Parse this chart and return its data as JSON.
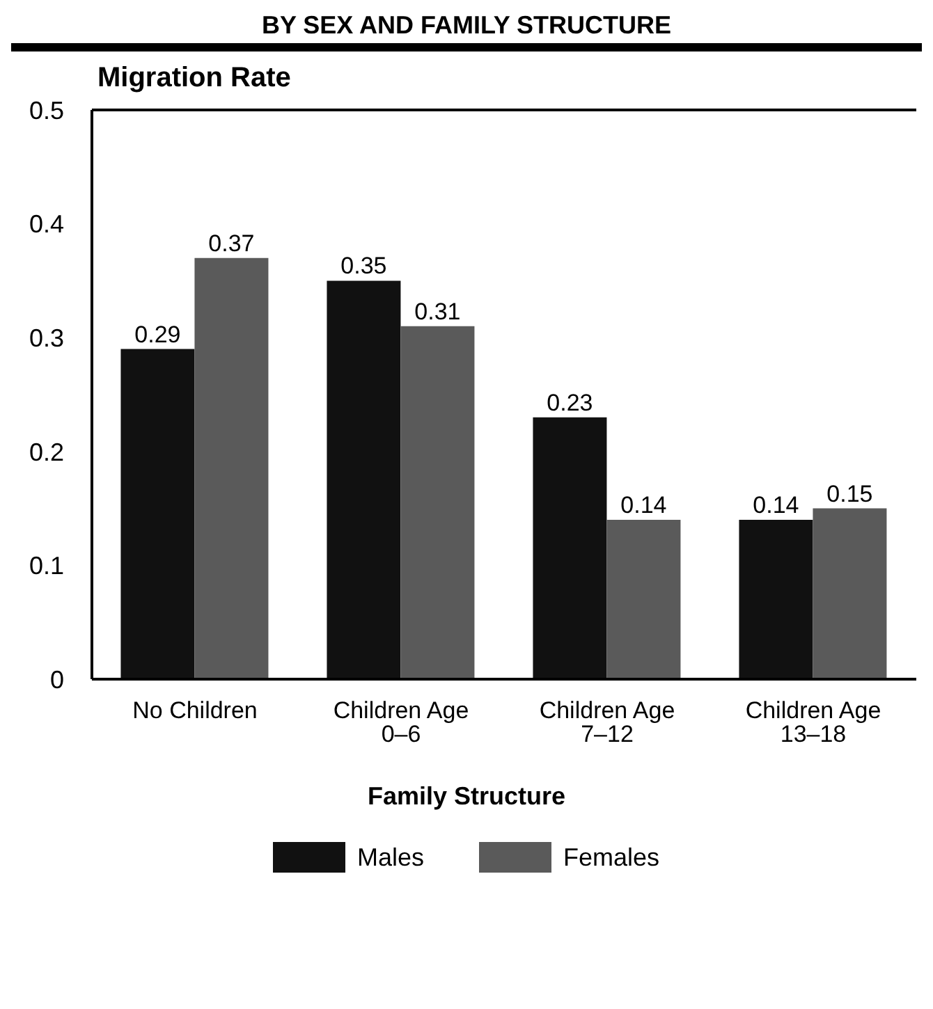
{
  "chart_data": {
    "type": "bar",
    "title": "BY SEX AND FAMILY STRUCTURE",
    "xlabel": "Family Structure",
    "ylabel": "Migration Rate",
    "categories": [
      "No Children",
      "Children Age 0–6",
      "Children Age 7–12",
      "Children Age 13–18"
    ],
    "series": [
      {
        "name": "Males",
        "color": "#111111",
        "values": [
          0.29,
          0.35,
          0.23,
          0.14
        ]
      },
      {
        "name": "Females",
        "color": "#5a5a5a",
        "values": [
          0.37,
          0.31,
          0.14,
          0.15
        ]
      }
    ],
    "ylim": [
      0,
      0.5
    ],
    "yticks": [
      0,
      0.1,
      0.2,
      0.3,
      0.4,
      0.5
    ],
    "data_labels": true,
    "grid": false,
    "legend": "bottom"
  }
}
